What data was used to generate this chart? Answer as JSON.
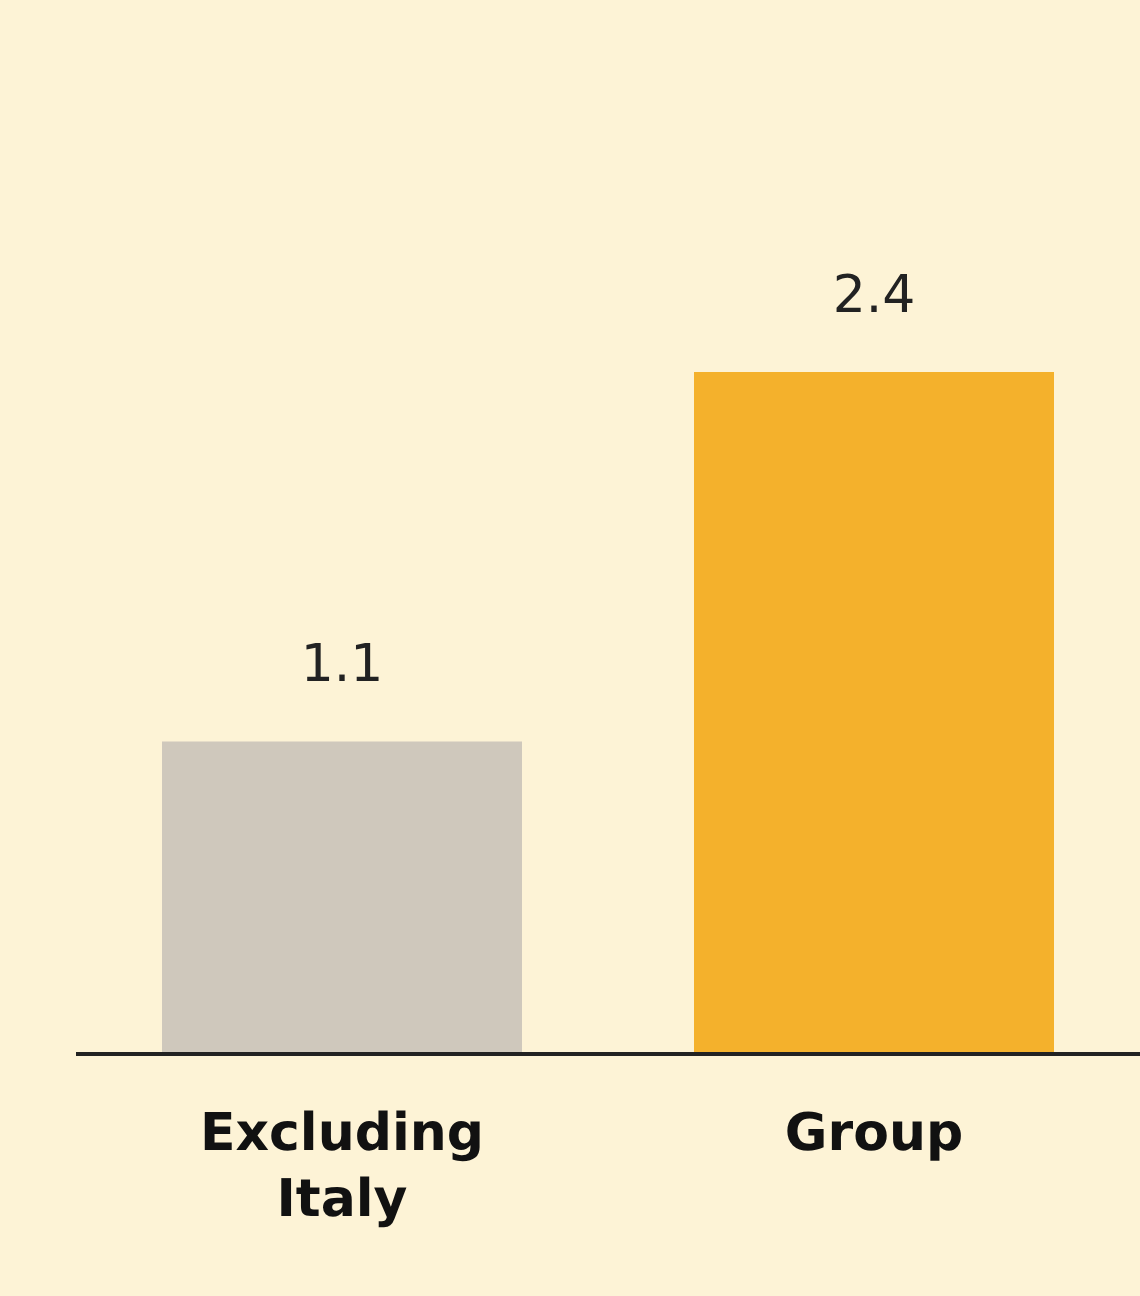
{
  "chart_data": {
    "type": "bar",
    "categories": [
      "Excluding Italy",
      "Group"
    ],
    "values": [
      1.1,
      2.4
    ],
    "colors": [
      "#cfc8bc",
      "#f4b12c"
    ],
    "data_labels": true
  }
}
